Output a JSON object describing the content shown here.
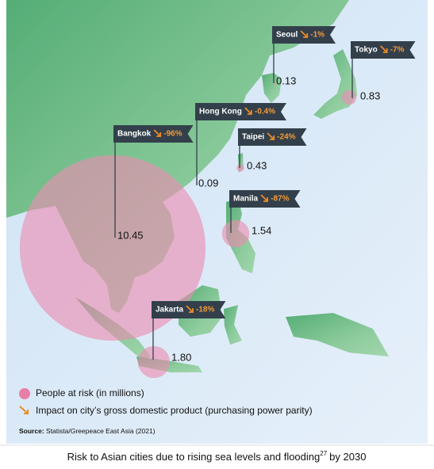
{
  "cities": [
    {
      "name": "Seoul",
      "people": 0.13,
      "impact": -1,
      "impact_label": "-1%"
    },
    {
      "name": "Tokyo",
      "people": 0.83,
      "impact": -7,
      "impact_label": "-7%"
    },
    {
      "name": "Hong Kong",
      "people": 0.09,
      "impact": -0.4,
      "impact_label": "-0.4%"
    },
    {
      "name": "Taipei",
      "people": 0.43,
      "impact": -24,
      "impact_label": "-24%"
    },
    {
      "name": "Bangkok",
      "people": 10.45,
      "impact": -96,
      "impact_label": "-96%"
    },
    {
      "name": "Manila",
      "people": 1.54,
      "impact": -87,
      "impact_label": "-87%"
    },
    {
      "name": "Jakarta",
      "people": 1.8,
      "people_label": "1.80",
      "impact": -18,
      "impact_label": "-18%"
    }
  ],
  "legend": {
    "people": "People at risk (in millions)",
    "impact": "Impact on city’s gross domestic product (purchasing power parity)"
  },
  "source": {
    "label": "Source:",
    "text": "Statista/Greepeace East Asia (2021)"
  },
  "caption": {
    "text": "Risk to Asian cities due to rising sea levels and flooding",
    "ref": "27",
    "suffix": "by 2030"
  }
}
